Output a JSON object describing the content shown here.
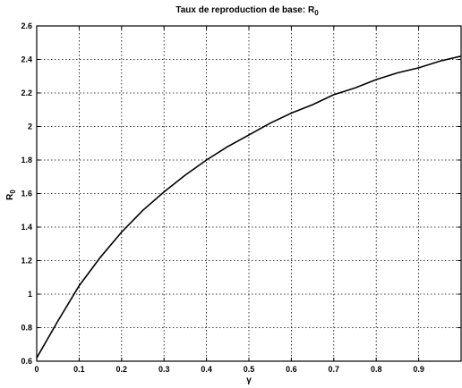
{
  "chart_data": {
    "type": "line",
    "title": "Taux de reproduction de base: R",
    "title_subscript": "0",
    "xlabel": "γ",
    "ylabel": "R",
    "ylabel_subscript": "0",
    "xlim": [
      0,
      1
    ],
    "ylim": [
      0.6,
      2.6
    ],
    "grid": true,
    "xticks": [
      0,
      0.1,
      0.2,
      0.3,
      0.4,
      0.5,
      0.6,
      0.7,
      0.8,
      0.9
    ],
    "xtick_labels": [
      "0",
      "0.1",
      "0.2",
      "0.3",
      "0.4",
      "0.5",
      "0.6",
      "0.7",
      "0.8",
      "0.9"
    ],
    "yticks": [
      0.6,
      0.8,
      1,
      1.2,
      1.4,
      1.6,
      1.8,
      2,
      2.2,
      2.4,
      2.6
    ],
    "ytick_labels": [
      "0.6",
      "0.8",
      "1",
      "1.2",
      "1.4",
      "1.6",
      "1.8",
      "2",
      "2.2",
      "2.4",
      "2.6"
    ],
    "series": [
      {
        "x": [
          0,
          0.05,
          0.1,
          0.15,
          0.2,
          0.25,
          0.3,
          0.35,
          0.4,
          0.45,
          0.5,
          0.55,
          0.6,
          0.65,
          0.7,
          0.75,
          0.8,
          0.85,
          0.9,
          0.95,
          1.0
        ],
        "values": [
          0.62,
          0.84,
          1.05,
          1.22,
          1.37,
          1.5,
          1.61,
          1.71,
          1.8,
          1.88,
          1.95,
          2.02,
          2.08,
          2.13,
          2.19,
          2.23,
          2.28,
          2.32,
          2.35,
          2.39,
          2.42
        ]
      }
    ]
  }
}
